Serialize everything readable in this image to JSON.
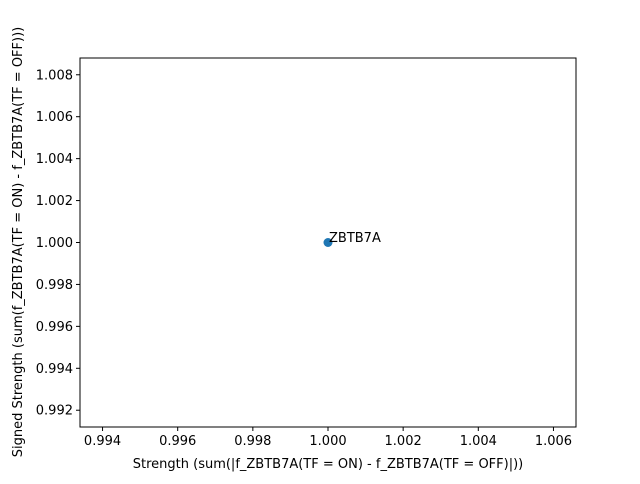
{
  "chart_data": {
    "type": "scatter",
    "title": "",
    "xlabel": "Strength (sum(|f_ZBTB7A(TF = ON) - f_ZBTB7A(TF = OFF)|))",
    "ylabel": "Signed Strength (sum(f_ZBTB7A(TF = ON) - f_ZBTB7A(TF = OFF)))",
    "xlim": [
      0.9934,
      1.0066
    ],
    "ylim": [
      0.9912,
      1.0088
    ],
    "xticks": [
      0.994,
      0.996,
      0.998,
      1.0,
      1.002,
      1.004,
      1.006
    ],
    "xtick_labels": [
      "0.994",
      "0.996",
      "0.998",
      "1.000",
      "1.002",
      "1.004",
      "1.006"
    ],
    "yticks": [
      0.992,
      0.994,
      0.996,
      0.998,
      1.0,
      1.002,
      1.004,
      1.006,
      1.008
    ],
    "ytick_labels": [
      "0.992",
      "0.994",
      "0.996",
      "0.998",
      "1.000",
      "1.002",
      "1.004",
      "1.006",
      "1.008"
    ],
    "grid": false,
    "points": [
      {
        "x": 1.0,
        "y": 1.0,
        "label": "ZBTB7A"
      }
    ],
    "colors": {
      "marker": "#1f77b4",
      "axes": "#000000"
    }
  }
}
